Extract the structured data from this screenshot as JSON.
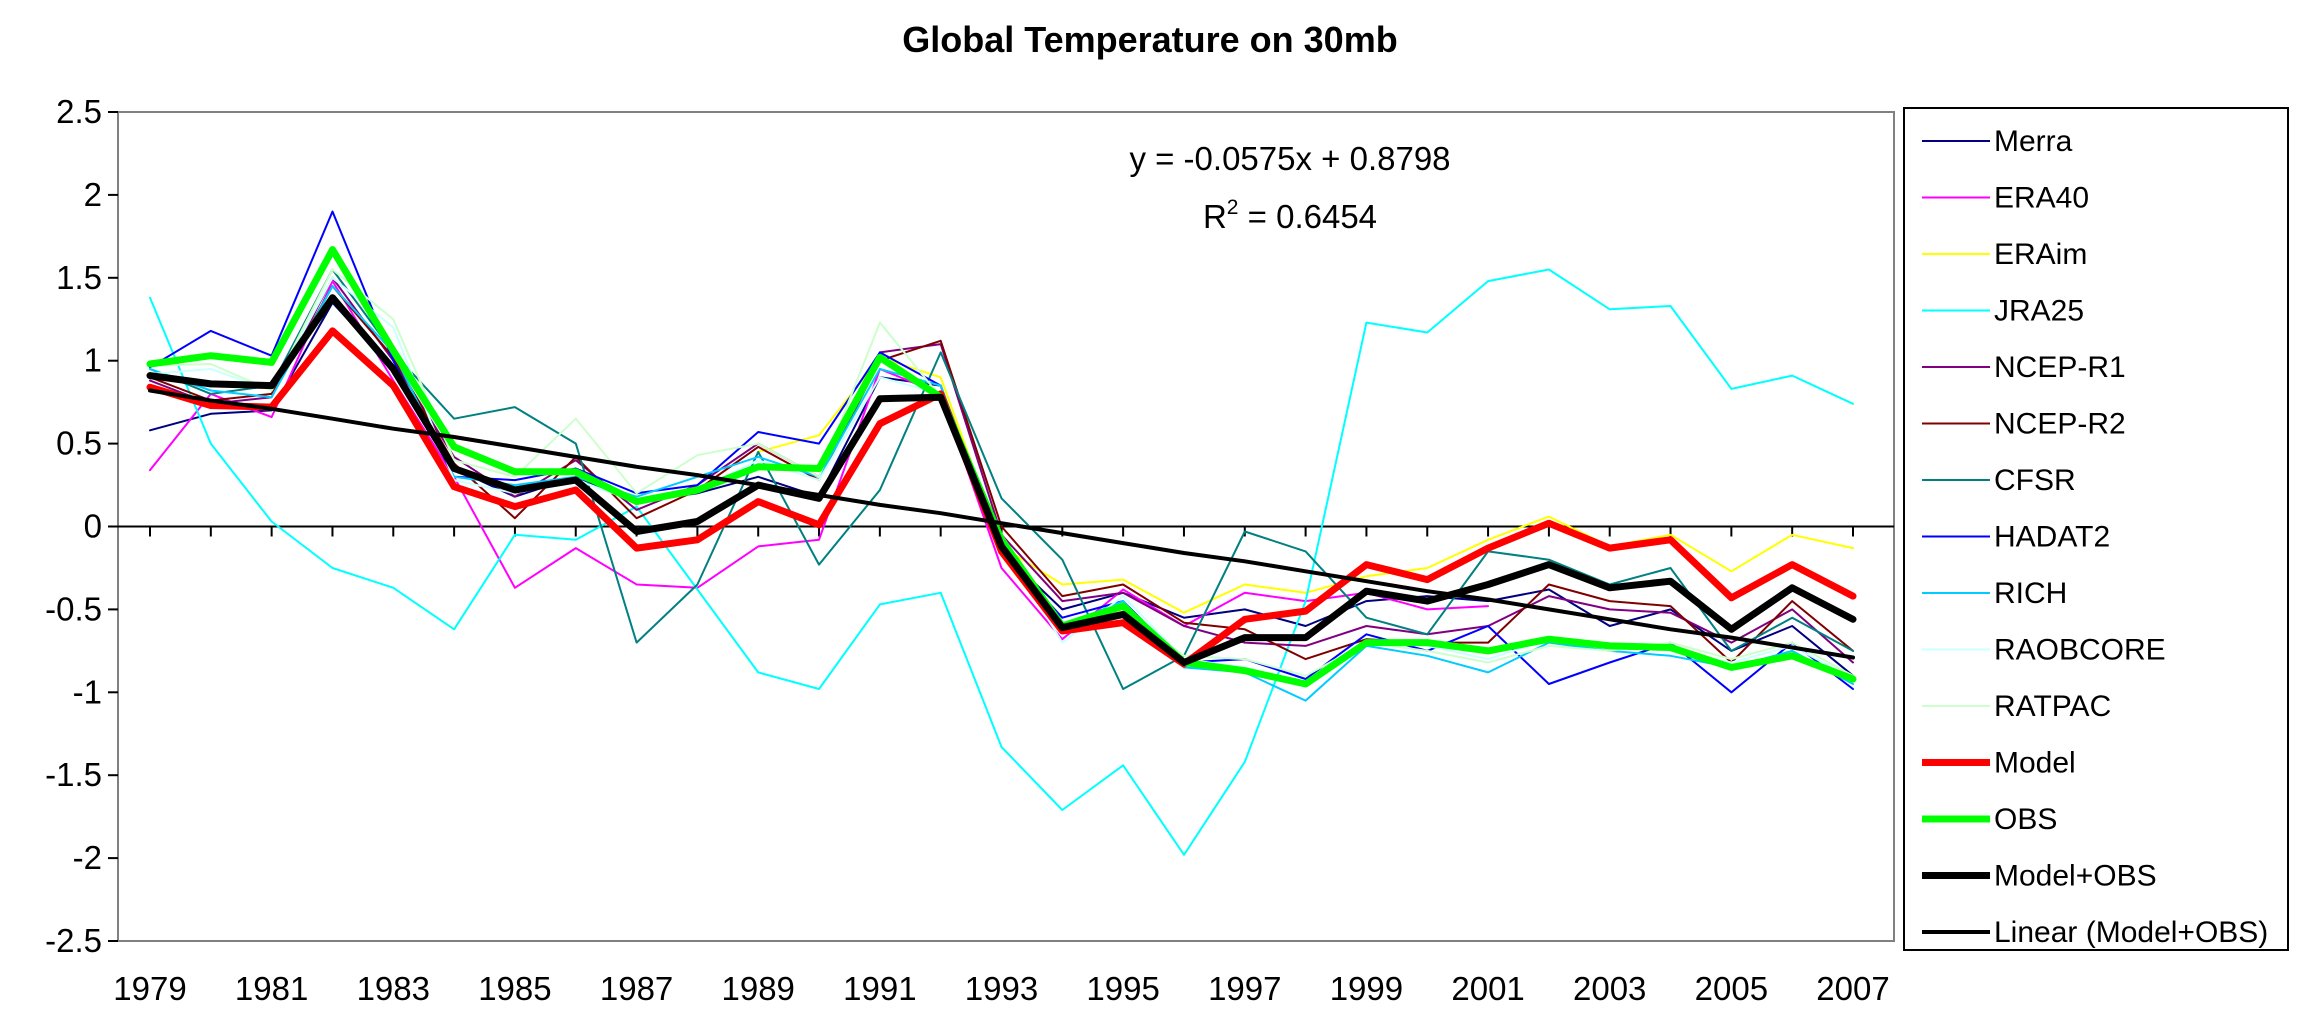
{
  "chart_data": {
    "type": "line",
    "title": "Global Temperature on 30mb",
    "xlabel": "",
    "ylabel": "",
    "x": [
      1979,
      1980,
      1981,
      1982,
      1983,
      1984,
      1985,
      1986,
      1987,
      1988,
      1989,
      1990,
      1991,
      1992,
      1993,
      1994,
      1995,
      1996,
      1997,
      1998,
      1999,
      2000,
      2001,
      2002,
      2003,
      2004,
      2005,
      2006,
      2007
    ],
    "x_tick_labels": [
      "1979",
      "1981",
      "1983",
      "1985",
      "1987",
      "1989",
      "1991",
      "1993",
      "1995",
      "1997",
      "1999",
      "2001",
      "2003",
      "2005",
      "2007"
    ],
    "ylim": [
      -2.5,
      2.5
    ],
    "y_ticks": [
      2.5,
      2,
      1.5,
      1,
      0.5,
      0,
      -0.5,
      -1,
      -1.5,
      -2,
      -2.5
    ],
    "y_tick_labels": [
      "2.5",
      "2",
      "1.5",
      "1",
      "0.5",
      "0",
      "-0.5",
      "-1",
      "-1.5",
      "-2",
      "-2.5"
    ],
    "grid": false,
    "legend_position": "right",
    "trendline_equation": "y = -0.0575x + 0.8798",
    "r_squared_label": "R",
    "r_squared_exponent": "2",
    "r_squared_value": " = 0.6454",
    "series": [
      {
        "name": "Merra",
        "color": "#000080",
        "width": 2,
        "values": [
          0.58,
          0.68,
          0.7,
          1.35,
          0.95,
          0.35,
          0.18,
          0.3,
          0.15,
          0.2,
          0.3,
          0.18,
          0.9,
          0.85,
          -0.15,
          -0.5,
          -0.4,
          -0.55,
          -0.5,
          -0.6,
          -0.45,
          -0.42,
          -0.45,
          -0.38,
          -0.6,
          -0.5,
          -0.75,
          -0.6,
          -0.9
        ]
      },
      {
        "name": "ERA40",
        "color": "#ff00ff",
        "width": 2,
        "values": [
          0.34,
          0.8,
          0.66,
          1.48,
          0.88,
          0.3,
          -0.37,
          -0.13,
          -0.35,
          -0.37,
          -0.12,
          -0.08,
          0.95,
          0.8,
          -0.25,
          -0.68,
          -0.38,
          -0.6,
          -0.4,
          -0.45,
          -0.4,
          -0.5,
          -0.48,
          null,
          null,
          null,
          null,
          null,
          null
        ]
      },
      {
        "name": "ERAim",
        "color": "#ffff00",
        "width": 2,
        "values": [
          null,
          null,
          null,
          null,
          null,
          null,
          null,
          null,
          null,
          null,
          0.45,
          0.55,
          1.02,
          0.9,
          -0.12,
          -0.35,
          -0.32,
          -0.52,
          -0.35,
          -0.4,
          -0.3,
          -0.25,
          -0.08,
          0.06,
          -0.12,
          -0.05,
          -0.27,
          -0.05,
          -0.13
        ]
      },
      {
        "name": "JRA25",
        "color": "#00ffff",
        "width": 2,
        "values": [
          1.38,
          0.5,
          0.03,
          -0.25,
          -0.37,
          -0.62,
          -0.05,
          -0.08,
          0.12,
          -0.38,
          -0.88,
          -0.98,
          -0.47,
          -0.4,
          -1.33,
          -1.71,
          -1.44,
          -1.98,
          -1.42,
          -0.45,
          1.23,
          1.17,
          1.48,
          1.55,
          1.31,
          1.33,
          0.83,
          0.91,
          0.74
        ]
      },
      {
        "name": "NCEP-R1",
        "color": "#800080",
        "width": 2,
        "values": [
          0.88,
          0.74,
          0.78,
          1.5,
          1.0,
          0.42,
          0.18,
          0.4,
          0.1,
          0.25,
          0.5,
          0.3,
          1.05,
          1.1,
          -0.05,
          -0.45,
          -0.4,
          -0.6,
          -0.7,
          -0.72,
          -0.6,
          -0.65,
          -0.6,
          -0.42,
          -0.5,
          -0.52,
          -0.7,
          -0.5,
          -0.82
        ]
      },
      {
        "name": "NCEP-R2",
        "color": "#800000",
        "width": 2,
        "values": [
          0.9,
          0.76,
          0.8,
          1.45,
          1.02,
          0.38,
          0.05,
          0.42,
          0.05,
          0.22,
          0.48,
          0.28,
          1.0,
          1.12,
          0.0,
          -0.42,
          -0.35,
          -0.58,
          -0.62,
          -0.8,
          -0.68,
          -0.7,
          -0.7,
          -0.35,
          -0.45,
          -0.48,
          -0.82,
          -0.45,
          -0.75
        ]
      },
      {
        "name": "CFSR",
        "color": "#008080",
        "width": 2,
        "values": [
          0.95,
          0.8,
          0.85,
          1.55,
          1.05,
          0.65,
          0.72,
          0.5,
          -0.7,
          -0.35,
          0.45,
          -0.23,
          0.22,
          1.05,
          0.17,
          -0.2,
          -0.98,
          -0.78,
          -0.03,
          -0.15,
          -0.55,
          -0.65,
          -0.15,
          -0.2,
          -0.35,
          -0.25,
          -0.75,
          -0.55,
          -0.75
        ]
      },
      {
        "name": "HADAT2",
        "color": "#0000ff",
        "width": 2,
        "values": [
          0.96,
          1.18,
          1.03,
          1.9,
          1.0,
          0.3,
          0.28,
          0.35,
          0.2,
          0.25,
          0.57,
          0.5,
          1.05,
          0.85,
          -0.15,
          -0.55,
          -0.45,
          -0.82,
          -0.8,
          -0.92,
          -0.65,
          -0.75,
          -0.6,
          -0.95,
          -0.82,
          -0.7,
          -1.0,
          -0.7,
          -0.98
        ]
      },
      {
        "name": "RICH",
        "color": "#00ccff",
        "width": 2,
        "values": [
          0.95,
          0.82,
          0.78,
          1.45,
          1.05,
          0.3,
          0.25,
          0.3,
          0.18,
          0.3,
          0.42,
          0.3,
          0.95,
          0.85,
          -0.12,
          -0.6,
          -0.45,
          -0.85,
          -0.88,
          -1.05,
          -0.72,
          -0.78,
          -0.88,
          -0.7,
          -0.75,
          -0.78,
          -0.85,
          -0.75,
          -0.95
        ]
      },
      {
        "name": "RAOBCORE",
        "color": "#ccffff",
        "width": 2,
        "values": [
          0.92,
          0.95,
          0.82,
          1.5,
          1.2,
          0.28,
          0.2,
          0.28,
          0.15,
          0.22,
          0.4,
          0.28,
          0.9,
          0.8,
          -0.1,
          -0.7,
          -0.42,
          -0.8,
          -0.85,
          -0.95,
          -0.7,
          -0.72,
          -0.8,
          -0.68,
          -0.72,
          -0.75,
          -0.82,
          -0.72,
          -0.92
        ]
      },
      {
        "name": "RATPAC",
        "color": "#ccffcc",
        "width": 2,
        "values": [
          0.97,
          0.98,
          0.82,
          1.55,
          1.25,
          0.4,
          0.3,
          0.65,
          0.2,
          0.43,
          0.5,
          0.3,
          1.23,
          0.78,
          -0.05,
          -0.6,
          -0.5,
          -0.78,
          -0.8,
          -0.9,
          -0.7,
          -0.75,
          -0.82,
          -0.72,
          -0.75,
          -0.7,
          -0.8,
          -0.7,
          -0.9
        ]
      },
      {
        "name": "Model",
        "color": "#ff0000",
        "width": 7,
        "values": [
          0.84,
          0.73,
          0.72,
          1.18,
          0.85,
          0.24,
          0.12,
          0.22,
          -0.13,
          -0.08,
          0.15,
          0.01,
          0.62,
          0.8,
          -0.15,
          -0.63,
          -0.58,
          -0.83,
          -0.56,
          -0.51,
          -0.23,
          -0.32,
          -0.13,
          0.02,
          -0.13,
          -0.08,
          -0.43,
          -0.23,
          -0.42
        ]
      },
      {
        "name": "OBS",
        "color": "#00ff00",
        "width": 7,
        "values": [
          0.98,
          1.03,
          0.99,
          1.67,
          1.06,
          0.48,
          0.33,
          0.33,
          0.15,
          0.22,
          0.36,
          0.35,
          1.02,
          0.78,
          -0.08,
          -0.6,
          -0.48,
          -0.82,
          -0.87,
          -0.95,
          -0.7,
          -0.7,
          -0.75,
          -0.68,
          -0.72,
          -0.73,
          -0.85,
          -0.78,
          -0.92
        ]
      },
      {
        "name": "Model+OBS",
        "color": "#000000",
        "width": 7,
        "values": [
          0.91,
          0.86,
          0.85,
          1.38,
          0.95,
          0.35,
          0.22,
          0.28,
          -0.03,
          0.03,
          0.25,
          0.17,
          0.77,
          0.78,
          -0.12,
          -0.61,
          -0.53,
          -0.82,
          -0.67,
          -0.67,
          -0.39,
          -0.45,
          -0.35,
          -0.23,
          -0.37,
          -0.33,
          -0.62,
          -0.37,
          -0.56
        ]
      },
      {
        "name": "Linear (Model+OBS)",
        "color": "#000000",
        "width": 4,
        "values": [
          0.82,
          0.76,
          0.71,
          0.65,
          0.59,
          0.54,
          0.48,
          0.42,
          0.36,
          0.31,
          0.25,
          0.19,
          0.13,
          0.08,
          0.02,
          -0.04,
          -0.1,
          -0.16,
          -0.21,
          -0.27,
          -0.33,
          -0.39,
          -0.44,
          -0.5,
          -0.56,
          -0.62,
          -0.67,
          -0.73,
          -0.79
        ]
      }
    ]
  }
}
